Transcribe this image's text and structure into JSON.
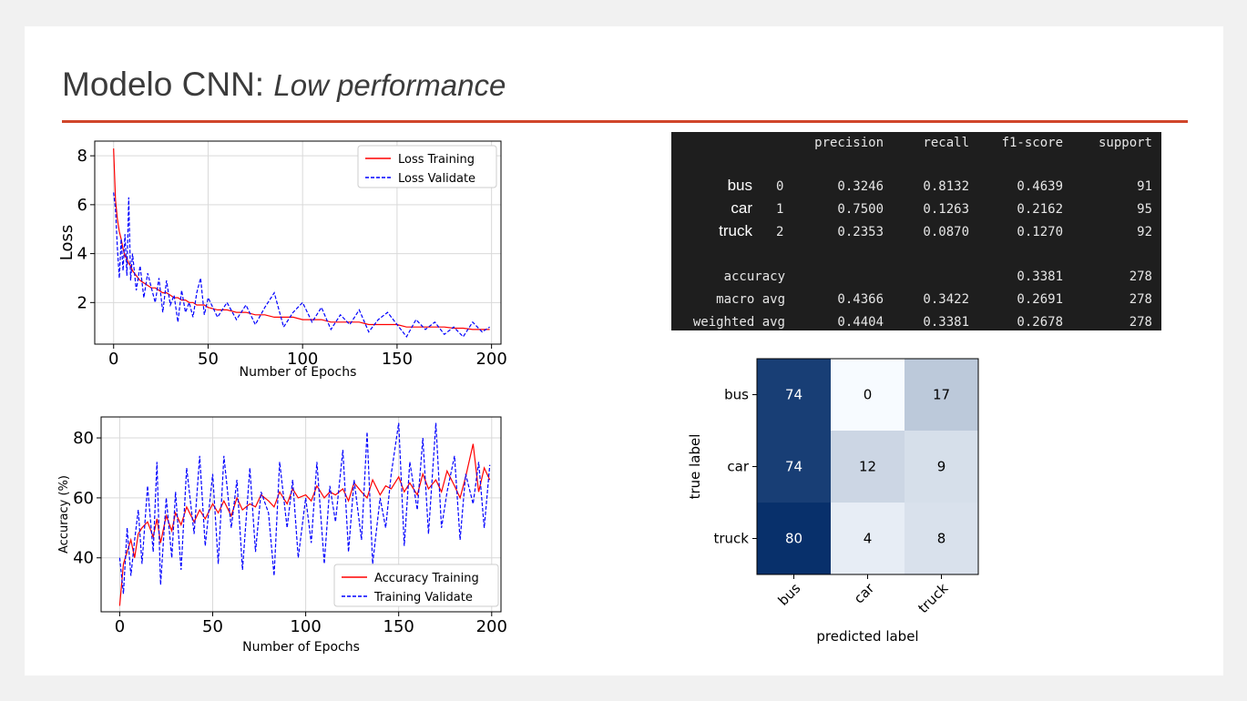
{
  "slide": {
    "title_main": "Modelo CNN:",
    "title_sub": "Low performance",
    "accent_color": "#d0462a"
  },
  "chart_data": [
    {
      "type": "line",
      "xlabel": "Number of Epochs",
      "ylabel": "Loss",
      "xlim": [
        -10,
        205
      ],
      "ylim": [
        0.3,
        8.6
      ],
      "xticks": [
        0,
        50,
        100,
        150,
        200
      ],
      "yticks": [
        2,
        4,
        6,
        8
      ],
      "grid": true,
      "legend": "top-right",
      "series": [
        {
          "name": "Loss Training",
          "color": "#ff0000",
          "style": "solid",
          "x": [
            0,
            1,
            2,
            3,
            4,
            5,
            6,
            7,
            8,
            9,
            10,
            12,
            14,
            16,
            18,
            20,
            22,
            24,
            26,
            28,
            30,
            32,
            34,
            36,
            38,
            40,
            42,
            44,
            46,
            48,
            50,
            55,
            60,
            65,
            70,
            75,
            80,
            85,
            90,
            95,
            100,
            105,
            110,
            115,
            120,
            125,
            130,
            135,
            140,
            145,
            150,
            155,
            160,
            165,
            170,
            175,
            180,
            185,
            190,
            195,
            199
          ],
          "y": [
            8.3,
            6.2,
            5.4,
            4.9,
            4.6,
            4.2,
            3.9,
            3.8,
            3.6,
            3.5,
            3.3,
            3.1,
            2.9,
            2.8,
            2.7,
            2.6,
            2.6,
            2.5,
            2.4,
            2.4,
            2.3,
            2.2,
            2.2,
            2.1,
            2.1,
            2.0,
            2.0,
            1.9,
            1.9,
            1.9,
            1.8,
            1.7,
            1.7,
            1.6,
            1.6,
            1.5,
            1.5,
            1.4,
            1.4,
            1.4,
            1.3,
            1.3,
            1.3,
            1.2,
            1.2,
            1.2,
            1.2,
            1.1,
            1.1,
            1.1,
            1.1,
            1.0,
            1.0,
            1.0,
            1.0,
            1.0,
            0.95,
            0.95,
            0.9,
            0.9,
            0.9
          ]
        },
        {
          "name": "Loss Validate",
          "color": "#0000ff",
          "style": "dashed",
          "x": [
            0,
            1,
            2,
            3,
            4,
            5,
            6,
            7,
            8,
            9,
            10,
            12,
            14,
            16,
            18,
            20,
            22,
            24,
            26,
            28,
            30,
            32,
            34,
            36,
            38,
            40,
            42,
            44,
            46,
            48,
            50,
            55,
            60,
            65,
            70,
            75,
            80,
            85,
            90,
            95,
            100,
            105,
            110,
            115,
            120,
            125,
            130,
            135,
            140,
            145,
            150,
            155,
            160,
            165,
            170,
            175,
            180,
            185,
            190,
            195,
            199
          ],
          "y": [
            6.5,
            5.8,
            4.2,
            3.0,
            4.6,
            3.3,
            4.8,
            3.1,
            6.3,
            2.9,
            4.0,
            2.5,
            3.5,
            2.2,
            3.2,
            2.6,
            2.0,
            3.0,
            1.6,
            2.9,
            1.9,
            2.3,
            1.2,
            2.5,
            1.6,
            2.0,
            1.4,
            2.4,
            3.0,
            1.5,
            2.2,
            1.4,
            2.0,
            1.3,
            1.9,
            1.1,
            1.8,
            2.4,
            1.0,
            1.6,
            2.0,
            1.2,
            1.8,
            0.9,
            1.5,
            1.1,
            1.7,
            0.8,
            1.3,
            1.6,
            1.1,
            0.6,
            1.3,
            0.9,
            1.2,
            0.7,
            1.0,
            0.6,
            1.2,
            0.8,
            1.0
          ]
        }
      ]
    },
    {
      "type": "line",
      "xlabel": "Number of Epochs",
      "ylabel": "Accuracy (%)",
      "xlim": [
        -10,
        205
      ],
      "ylim": [
        22,
        87
      ],
      "xticks": [
        0,
        50,
        100,
        150,
        200
      ],
      "yticks": [
        40,
        60,
        80
      ],
      "grid": true,
      "legend": "bottom-right",
      "series": [
        {
          "name": "Accuracy Training",
          "color": "#ff0000",
          "style": "solid",
          "x": [
            0,
            2,
            4,
            6,
            8,
            10,
            12,
            15,
            18,
            20,
            22,
            25,
            28,
            30,
            33,
            36,
            40,
            43,
            46,
            50,
            53,
            56,
            60,
            63,
            66,
            70,
            73,
            76,
            80,
            83,
            86,
            90,
            93,
            96,
            100,
            103,
            106,
            110,
            113,
            116,
            120,
            123,
            126,
            130,
            133,
            136,
            140,
            143,
            146,
            150,
            153,
            156,
            160,
            163,
            166,
            170,
            173,
            176,
            180,
            183,
            186,
            190,
            193,
            196,
            199
          ],
          "y": [
            24,
            38,
            42,
            46,
            40,
            48,
            50,
            52,
            47,
            53,
            45,
            54,
            49,
            55,
            51,
            57,
            52,
            56,
            53,
            58,
            55,
            59,
            54,
            60,
            56,
            58,
            57,
            61,
            59,
            57,
            62,
            58,
            63,
            60,
            61,
            59,
            64,
            60,
            62,
            61,
            63,
            59,
            65,
            62,
            60,
            66,
            61,
            64,
            63,
            67,
            62,
            65,
            61,
            68,
            63,
            66,
            62,
            69,
            64,
            60,
            67,
            78,
            62,
            70,
            66
          ]
        },
        {
          "name": "Training Validate",
          "color": "#0000ff",
          "style": "dashed",
          "x": [
            0,
            2,
            4,
            6,
            8,
            10,
            12,
            15,
            18,
            20,
            22,
            25,
            28,
            30,
            33,
            36,
            40,
            43,
            46,
            50,
            53,
            56,
            60,
            63,
            66,
            70,
            73,
            76,
            80,
            83,
            86,
            90,
            93,
            96,
            100,
            103,
            106,
            110,
            113,
            116,
            120,
            123,
            126,
            130,
            133,
            136,
            140,
            143,
            146,
            150,
            153,
            156,
            160,
            163,
            166,
            170,
            173,
            176,
            180,
            183,
            186,
            190,
            193,
            196,
            199
          ],
          "y": [
            40,
            28,
            50,
            34,
            46,
            56,
            38,
            64,
            42,
            72,
            31,
            60,
            40,
            62,
            36,
            70,
            48,
            74,
            44,
            68,
            38,
            74,
            50,
            66,
            36,
            70,
            42,
            62,
            55,
            34,
            72,
            50,
            66,
            40,
            60,
            45,
            72,
            38,
            64,
            52,
            76,
            42,
            66,
            46,
            82,
            38,
            60,
            50,
            68,
            85,
            44,
            72,
            56,
            80,
            48,
            85,
            50,
            62,
            74,
            46,
            68,
            58,
            72,
            50,
            71
          ]
        }
      ]
    },
    {
      "type": "table",
      "columns": [
        "",
        "",
        "precision",
        "recall",
        "f1-score",
        "support"
      ],
      "rows": [
        {
          "label": "bus",
          "idx": "0",
          "precision": "0.3246",
          "recall": "0.8132",
          "f1": "0.4639",
          "support": "91"
        },
        {
          "label": "car",
          "idx": "1",
          "precision": "0.7500",
          "recall": "0.1263",
          "f1": "0.2162",
          "support": "95"
        },
        {
          "label": "truck",
          "idx": "2",
          "precision": "0.2353",
          "recall": "0.0870",
          "f1": "0.1270",
          "support": "92"
        }
      ],
      "summary": [
        {
          "label": "accuracy",
          "precision": "",
          "recall": "",
          "f1": "0.3381",
          "support": "278"
        },
        {
          "label": "macro avg",
          "precision": "0.4366",
          "recall": "0.3422",
          "f1": "0.2691",
          "support": "278"
        },
        {
          "label": "weighted avg",
          "precision": "0.4404",
          "recall": "0.3381",
          "f1": "0.2678",
          "support": "278"
        }
      ]
    },
    {
      "type": "heatmap",
      "xlabel": "predicted label",
      "ylabel": "true label",
      "categories": [
        "bus",
        "car",
        "truck"
      ],
      "values": [
        [
          74,
          0,
          17
        ],
        [
          74,
          12,
          9
        ],
        [
          80,
          4,
          8
        ]
      ],
      "colormap": "Blues"
    }
  ]
}
